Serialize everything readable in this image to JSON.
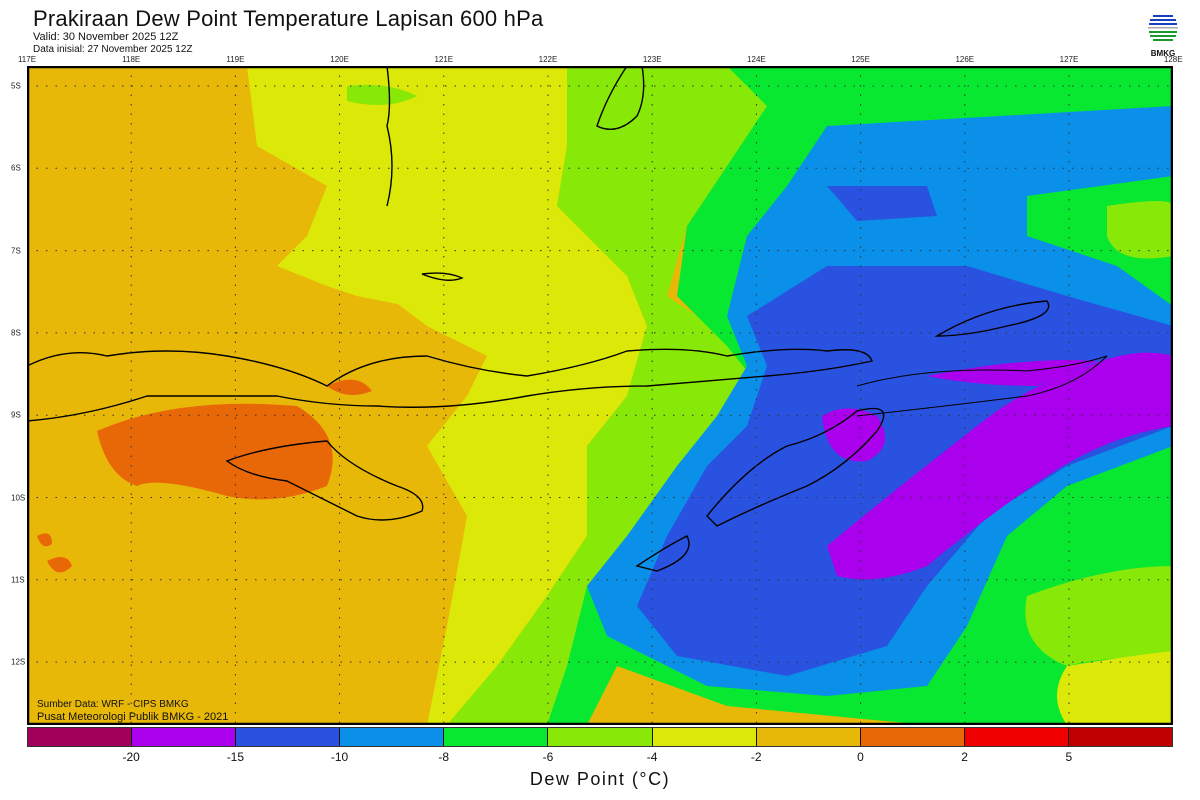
{
  "header": {
    "title": "Prakiraan Dew Point Temperature Lapisan 600 hPa",
    "valid": "Valid: 30 November 2025 12Z",
    "initial": "Data inisial: 27 November 2025 12Z"
  },
  "logo": {
    "text": "BMKG"
  },
  "map": {
    "lon_labels": [
      "117E",
      "118E",
      "119E",
      "120E",
      "121E",
      "122E",
      "123E",
      "124E",
      "125E",
      "126E",
      "127E",
      "128E"
    ],
    "lat_labels": [
      "5S",
      "6S",
      "7S",
      "8S",
      "9S",
      "10S",
      "11S",
      "12S"
    ],
    "source": "Sumber Data: WRF - CIPS BMKG",
    "credit": "Pusat Meteorologi Publik BMKG - 2021"
  },
  "colorbar": {
    "colors": [
      "#A0005A",
      "#AA00EE",
      "#2A52E0",
      "#0A90E8",
      "#08E830",
      "#88E808",
      "#DCE808",
      "#E8B808",
      "#E86808",
      "#F00000",
      "#C00000"
    ],
    "labels": [
      "-20",
      "-15",
      "-10",
      "-8",
      "-6",
      "-4",
      "-2",
      "0",
      "2",
      "5"
    ],
    "axis_label": "Dew Point (°C)"
  }
}
